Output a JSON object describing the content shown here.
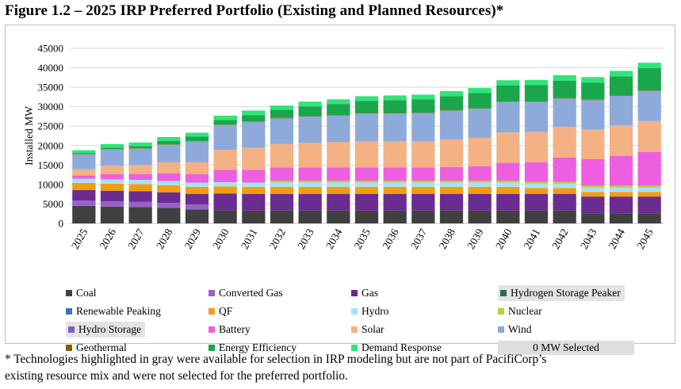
{
  "figure_title": "Figure 1.2 – 2025 IRP Preferred Portfolio (Existing and Planned Resources)*",
  "footnote": {
    "line1": "* Technologies highlighted in gray were available for selection in IRP modeling but are not part of PacifiCorp’s",
    "line2": "existing resource mix and were not selected for the preferred portfolio."
  },
  "selection_status": "0 MW Selected",
  "chart_data": {
    "type": "bar",
    "stacked": true,
    "ylabel": "Installed MW",
    "xlabel": "",
    "ylim": [
      0,
      45000
    ],
    "yticks": [
      0,
      5000,
      10000,
      15000,
      20000,
      25000,
      30000,
      35000,
      40000,
      45000
    ],
    "grid": true,
    "legend_position": "bottom",
    "categories": [
      "2025",
      "2026",
      "2027",
      "2028",
      "2029",
      "2030",
      "2031",
      "2032",
      "2033",
      "2034",
      "2035",
      "2036",
      "2037",
      "2038",
      "2039",
      "2040",
      "2041",
      "2042",
      "2043",
      "2044",
      "2045"
    ],
    "series": [
      {
        "name": "Coal",
        "color": "#404040",
        "highlighted_gray": false,
        "values": [
          4500,
          4300,
          4200,
          4000,
          3600,
          3400,
          3300,
          3300,
          3300,
          3300,
          3300,
          3300,
          3300,
          3300,
          3300,
          3300,
          3300,
          3300,
          2600,
          2600,
          2600
        ]
      },
      {
        "name": "Converted Gas",
        "color": "#9b5fc9",
        "highlighted_gray": false,
        "values": [
          1400,
          1400,
          1400,
          1300,
          1300,
          0,
          0,
          0,
          0,
          0,
          0,
          0,
          0,
          0,
          0,
          0,
          0,
          0,
          0,
          0,
          0
        ]
      },
      {
        "name": "Gas",
        "color": "#6a2c91",
        "highlighted_gray": false,
        "values": [
          2700,
          2700,
          2700,
          2700,
          2700,
          4300,
          4300,
          4300,
          4300,
          4300,
          4300,
          4300,
          4300,
          4300,
          4300,
          4300,
          4300,
          4300,
          4300,
          4300,
          4300
        ]
      },
      {
        "name": "Hydrogen Storage Peaker",
        "color": "#2f6b4f",
        "highlighted_gray": true,
        "values": [
          0,
          0,
          0,
          0,
          0,
          0,
          0,
          0,
          0,
          0,
          0,
          0,
          0,
          0,
          0,
          0,
          0,
          0,
          0,
          0,
          0
        ]
      },
      {
        "name": "Renewable Peaking",
        "color": "#4a6fb5",
        "highlighted_gray": false,
        "values": [
          0,
          0,
          0,
          0,
          0,
          0,
          0,
          0,
          0,
          0,
          0,
          0,
          0,
          0,
          0,
          0,
          0,
          0,
          0,
          0,
          0
        ]
      },
      {
        "name": "QF",
        "color": "#f39c12",
        "highlighted_gray": false,
        "values": [
          1800,
          1800,
          1800,
          1800,
          1800,
          1800,
          1800,
          1800,
          1800,
          1800,
          1800,
          1800,
          1800,
          1800,
          1800,
          1800,
          1500,
          1500,
          1200,
          1200,
          1200
        ]
      },
      {
        "name": "Hydro",
        "color": "#a6e3f5",
        "highlighted_gray": false,
        "values": [
          1100,
          1100,
          1100,
          1100,
          1100,
          1100,
          1100,
          1100,
          1100,
          1100,
          1100,
          1100,
          1100,
          1100,
          1100,
          1100,
          1100,
          1100,
          1100,
          1100,
          1100
        ]
      },
      {
        "name": "Nuclear",
        "color": "#b5d334",
        "highlighted_gray": false,
        "values": [
          0,
          0,
          0,
          0,
          0,
          0,
          0,
          500,
          500,
          500,
          500,
          500,
          500,
          500,
          500,
          500,
          500,
          500,
          500,
          500,
          500
        ]
      },
      {
        "name": "Hydro Storage",
        "color": "#7d5fc4",
        "highlighted_gray": true,
        "values": [
          0,
          0,
          0,
          0,
          0,
          0,
          0,
          0,
          0,
          0,
          0,
          0,
          0,
          0,
          0,
          0,
          0,
          0,
          0,
          0,
          0
        ]
      },
      {
        "name": "Battery",
        "color": "#ee5ee0",
        "highlighted_gray": false,
        "values": [
          800,
          1400,
          1500,
          2000,
          2200,
          3200,
          3300,
          3400,
          3400,
          3400,
          3400,
          3400,
          3400,
          3500,
          3700,
          4600,
          5000,
          6200,
          6800,
          7600,
          8700
        ]
      },
      {
        "name": "Solar",
        "color": "#f4b183",
        "highlighted_gray": false,
        "values": [
          1600,
          2100,
          2300,
          2800,
          3000,
          5100,
          5600,
          6000,
          6300,
          6500,
          6700,
          6700,
          6700,
          7100,
          7300,
          7800,
          7800,
          7900,
          7600,
          7900,
          7900
        ]
      },
      {
        "name": "Wind",
        "color": "#8eaadb",
        "highlighted_gray": false,
        "values": [
          3900,
          4200,
          4200,
          4500,
          5400,
          6400,
          6700,
          6600,
          6800,
          6900,
          7200,
          7200,
          7300,
          7400,
          7500,
          7800,
          7700,
          7300,
          7600,
          7600,
          7800
        ]
      },
      {
        "name": "Geothermal",
        "color": "#806000",
        "highlighted_gray": false,
        "values": [
          100,
          100,
          100,
          100,
          100,
          100,
          100,
          100,
          100,
          100,
          100,
          100,
          100,
          100,
          100,
          100,
          100,
          100,
          100,
          100,
          100
        ]
      },
      {
        "name": "Energy Efficiency",
        "color": "#1aa64a",
        "highlighted_gray": false,
        "values": [
          200,
          400,
          600,
          900,
          1100,
          1200,
          1600,
          2100,
          2500,
          2800,
          3100,
          3300,
          3400,
          3600,
          3900,
          4200,
          4300,
          4500,
          4400,
          4900,
          5700
        ]
      },
      {
        "name": "Demand Response",
        "color": "#2ee57a",
        "highlighted_gray": false,
        "values": [
          700,
          900,
          900,
          1000,
          1000,
          1100,
          1200,
          1100,
          1200,
          1200,
          1200,
          1200,
          1200,
          1300,
          1300,
          1300,
          1300,
          1400,
          1400,
          1400,
          1400
        ]
      }
    ]
  }
}
